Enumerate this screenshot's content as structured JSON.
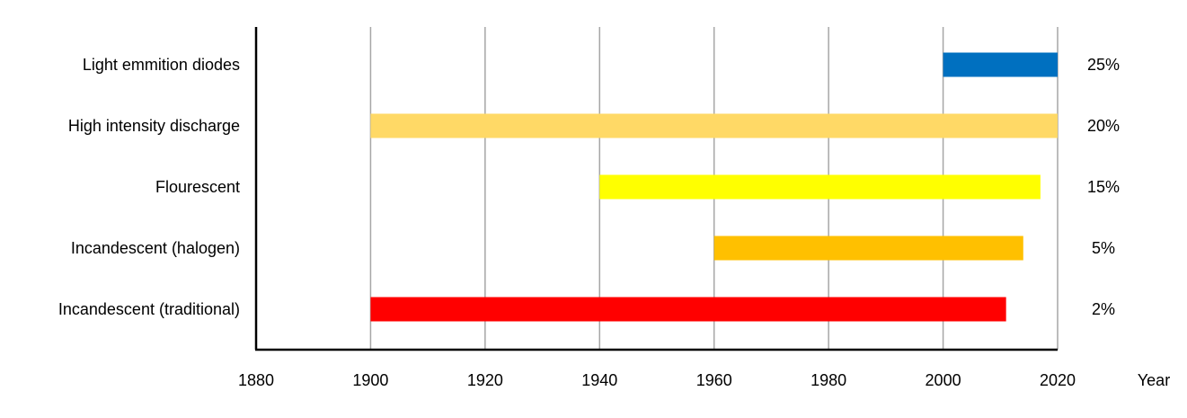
{
  "chart_data": {
    "type": "bar",
    "orientation": "horizontal",
    "title": "",
    "xlabel": "Year",
    "ylabel": "",
    "xlim": [
      1880,
      2020
    ],
    "x_ticks": [
      "1880",
      "1900",
      "1920",
      "1940",
      "1960",
      "1980",
      "2000",
      "2020"
    ],
    "grid": "vertical gridlines at each tick",
    "legend": "none",
    "categories": [
      "Light emmition diodes",
      "High intensity discharge",
      "Flourescent",
      "Incandescent (halogen)",
      "Incandescent (traditional)"
    ],
    "ranges": [
      {
        "start": 2000,
        "end": 2020
      },
      {
        "start": 1900,
        "end": 2020
      },
      {
        "start": 1940,
        "end": 2017
      },
      {
        "start": 1960,
        "end": 2014
      },
      {
        "start": 1900,
        "end": 2011
      }
    ],
    "colors": [
      "#0070c0",
      "#ffd966",
      "#ffff00",
      "#ffc000",
      "#ff0000"
    ],
    "right_labels": [
      "25%",
      "20%",
      "15%",
      "5%",
      "2%"
    ]
  }
}
